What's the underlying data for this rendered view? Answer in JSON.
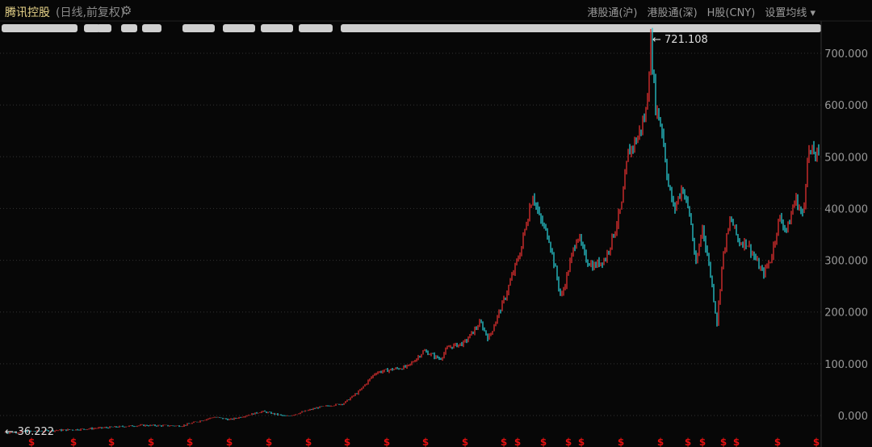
{
  "header": {
    "title": "腾讯控股",
    "subtitle": "(日线,前复权)",
    "gear_icon": "gear-icon",
    "tabs": [
      "港股通(沪)",
      "港股通(深)",
      "H股(CNY)",
      "设置均线 ▾"
    ]
  },
  "chart_data": {
    "type": "candlestick",
    "ylim": [
      -40,
      760
    ],
    "yticks": [
      "700.000",
      "600.000",
      "500.000",
      "400.000",
      "300.000",
      "200.000",
      "100.000",
      "0.000"
    ],
    "ytick_values": [
      700,
      600,
      500,
      400,
      300,
      200,
      100,
      0
    ],
    "grid": true,
    "max_label": "721.108",
    "min_label": "-36.222",
    "max_value": 721.108,
    "min_value": -36.222,
    "colors": {
      "up": "#e03030",
      "down": "#28c8d0",
      "marker": "#e01010"
    },
    "close_path": [
      [
        0,
        -33
      ],
      [
        9,
        -27
      ],
      [
        17,
        -19
      ],
      [
        22,
        -20
      ],
      [
        26,
        -3
      ],
      [
        28,
        -8
      ],
      [
        32,
        8
      ],
      [
        35,
        -2
      ],
      [
        39,
        16
      ],
      [
        42,
        23
      ],
      [
        44,
        47
      ],
      [
        46,
        83
      ],
      [
        48,
        89
      ],
      [
        50,
        94
      ],
      [
        52,
        125
      ],
      [
        54,
        109
      ],
      [
        55,
        132
      ],
      [
        57,
        140
      ],
      [
        59,
        180
      ],
      [
        60,
        148
      ],
      [
        61,
        187
      ],
      [
        62,
        226
      ],
      [
        63,
        273
      ],
      [
        64,
        320
      ],
      [
        64.7,
        374
      ],
      [
        65.5,
        429
      ],
      [
        66.3,
        382
      ],
      [
        67.5,
        343
      ],
      [
        69,
        226
      ],
      [
        70,
        288
      ],
      [
        71,
        351
      ],
      [
        72,
        304
      ],
      [
        73,
        288
      ],
      [
        74.5,
        304
      ],
      [
        75.5,
        351
      ],
      [
        76.5,
        405
      ],
      [
        77.3,
        507
      ],
      [
        78.5,
        538
      ],
      [
        79.5,
        585
      ],
      [
        80.1,
        721
      ],
      [
        80.7,
        600
      ],
      [
        81.5,
        553
      ],
      [
        82.3,
        444
      ],
      [
        83,
        397
      ],
      [
        84,
        444
      ],
      [
        85,
        382
      ],
      [
        85.7,
        288
      ],
      [
        86.5,
        366
      ],
      [
        87.5,
        273
      ],
      [
        88.3,
        179
      ],
      [
        89,
        304
      ],
      [
        90,
        382
      ],
      [
        91,
        335
      ],
      [
        92,
        335
      ],
      [
        93,
        304
      ],
      [
        94,
        273
      ],
      [
        95,
        304
      ],
      [
        96,
        382
      ],
      [
        97,
        358
      ],
      [
        98,
        421
      ],
      [
        99,
        382
      ],
      [
        99.5,
        507
      ],
      [
        100.3,
        507
      ],
      [
        101,
        499
      ]
    ],
    "dividend_markers": [
      3.4,
      8.6,
      13.3,
      18.2,
      23,
      27.9,
      32.8,
      37.7,
      42.5,
      47.4,
      52.2,
      57.1,
      61.9,
      63.6,
      66.8,
      69.9,
      71.5,
      76.4,
      81.3,
      84.7,
      86.5,
      89.1,
      90.7,
      95.8,
      100.6
    ],
    "marker_symbol": "$"
  }
}
